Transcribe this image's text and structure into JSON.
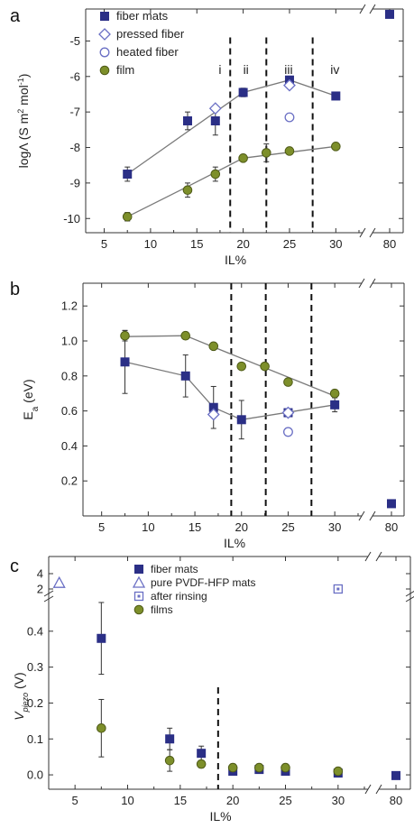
{
  "colors": {
    "navy": "#2b2f86",
    "olive": "#7d8f2a",
    "olive_edge": "#4e5a17",
    "hollow": "#6a6fc4",
    "line": "#7a7a7a"
  },
  "chart_data": [
    {
      "type": "scatter",
      "panel_label": "a",
      "ylabel_parts": [
        "logΛ (S m",
        "2",
        " mol",
        "-1",
        ")"
      ],
      "xlabel": "IL%",
      "ylim": [
        -10.4,
        -4.1
      ],
      "yticks": [
        "-10",
        "-9",
        "-8",
        "-7",
        "-6",
        "-5"
      ],
      "yticks_values": [
        -10,
        -9,
        -8,
        -7,
        -6,
        -5
      ],
      "xticks": [
        "5",
        "10",
        "15",
        "20",
        "25",
        "30",
        "80"
      ],
      "xticks_values": [
        5,
        10,
        15,
        20,
        25,
        30,
        80
      ],
      "dividers_at": [
        18.6,
        22.5,
        27.5
      ],
      "regions": [
        {
          "label": "i",
          "x": 17.5,
          "y": -5.8
        },
        {
          "label": "ii",
          "x": 20.3,
          "y": -5.8
        },
        {
          "label": "iii",
          "x": 24.9,
          "y": -5.8
        },
        {
          "label": "iv",
          "x": 29.9,
          "y": -5.8
        }
      ],
      "legend": [
        "fiber mats",
        "pressed fiber",
        "heated fiber",
        "film"
      ],
      "series": [
        {
          "name": "fiber mats",
          "marker": "square-filled",
          "x": [
            7.5,
            14,
            17,
            20,
            25,
            30,
            80
          ],
          "y": [
            -8.75,
            -7.25,
            -7.25,
            -6.45,
            -6.1,
            -6.55,
            -4.25
          ],
          "err": [
            0.2,
            0.25,
            0.4,
            0.12,
            0.08,
            0.1,
            0
          ]
        },
        {
          "name": "pressed fiber",
          "marker": "diamond-open",
          "x": [
            17,
            25
          ],
          "y": [
            -6.9,
            -6.25
          ],
          "err": [
            0,
            0
          ]
        },
        {
          "name": "heated fiber",
          "marker": "circle-open",
          "x": [
            25
          ],
          "y": [
            -7.15
          ],
          "err": [
            0
          ]
        },
        {
          "name": "film",
          "marker": "circle-filled",
          "x": [
            7.5,
            14,
            17,
            20,
            22.5,
            25,
            30
          ],
          "y": [
            -9.95,
            -9.2,
            -8.75,
            -8.3,
            -8.15,
            -8.1,
            -7.97
          ],
          "err": [
            0.12,
            0.2,
            0.2,
            0.07,
            0.25,
            0.07,
            0.05
          ]
        }
      ],
      "fit_lines": [
        {
          "x": [
            7.5,
            20,
            25,
            30
          ],
          "y": [
            -8.75,
            -6.45,
            -6.1,
            -6.55
          ]
        },
        {
          "x": [
            7.5,
            14,
            20,
            30
          ],
          "y": [
            -9.95,
            -9.1,
            -8.3,
            -7.97
          ]
        }
      ]
    },
    {
      "type": "scatter",
      "panel_label": "b",
      "ylabel_parts": [
        "E",
        "a",
        " (eV)"
      ],
      "xlabel": "IL%",
      "ylim": [
        0,
        1.33
      ],
      "yticks": [
        "0.2",
        "0.4",
        "0.6",
        "0.8",
        "1.0",
        "1.2"
      ],
      "yticks_values": [
        0.2,
        0.4,
        0.6,
        0.8,
        1.0,
        1.2
      ],
      "xticks": [
        "5",
        "10",
        "15",
        "20",
        "25",
        "30",
        "80"
      ],
      "xticks_values": [
        5,
        10,
        15,
        20,
        25,
        30,
        80
      ],
      "dividers_at": [
        18.9,
        22.6,
        27.5
      ],
      "series": [
        {
          "name": "fiber mats",
          "marker": "square-filled",
          "x": [
            7.5,
            14,
            17,
            20,
            25,
            30,
            80
          ],
          "y": [
            0.88,
            0.8,
            0.62,
            0.55,
            0.59,
            0.635,
            0.07
          ],
          "err": [
            0.18,
            0.12,
            0.12,
            0.11,
            0.02,
            0.04,
            0
          ]
        },
        {
          "name": "pressed fiber",
          "marker": "diamond-open",
          "x": [
            17,
            25
          ],
          "y": [
            0.58,
            0.59
          ],
          "err": [
            0,
            0
          ]
        },
        {
          "name": "heated fiber",
          "marker": "circle-open",
          "x": [
            25
          ],
          "y": [
            0.48
          ],
          "err": [
            0
          ]
        },
        {
          "name": "film",
          "marker": "circle-filled",
          "x": [
            7.5,
            14,
            17,
            20,
            22.5,
            25,
            30
          ],
          "y": [
            1.03,
            1.03,
            0.97,
            0.855,
            0.855,
            0.765,
            0.7
          ],
          "err": [
            0.03,
            0,
            0,
            0,
            0,
            0,
            0
          ]
        }
      ],
      "fit_lines": [
        {
          "x": [
            7.5,
            14,
            17,
            20,
            30
          ],
          "y": [
            0.88,
            0.8,
            0.62,
            0.55,
            0.635
          ]
        },
        {
          "x": [
            7.5,
            14,
            30
          ],
          "y": [
            1.025,
            1.03,
            0.685
          ]
        }
      ]
    },
    {
      "type": "scatter",
      "panel_label": "c",
      "ylabel_main": "V",
      "ylabel_sub": "piezo",
      "ylabel_unit": " (V)",
      "xlabel": "IL%",
      "ylim": [
        -0.04,
        0.5
      ],
      "yticks": [
        "0.0",
        "0.1",
        "0.2",
        "0.3",
        "0.4"
      ],
      "yticks_values": [
        0.0,
        0.1,
        0.2,
        0.3,
        0.4
      ],
      "upper_yticks": [
        "2",
        "4"
      ],
      "upper_yticks_values": [
        2,
        4
      ],
      "xticks": [
        "5",
        "10",
        "15",
        "20",
        "25",
        "30",
        "80"
      ],
      "xticks_values": [
        5,
        10,
        15,
        20,
        25,
        30,
        80
      ],
      "dividers_at": [
        18.6
      ],
      "legend": [
        "fiber mats",
        "pure PVDF-HFP mats",
        "after rinsing",
        "films"
      ],
      "series": [
        {
          "name": "fiber mats",
          "marker": "square-filled",
          "x": [
            7.5,
            14,
            17,
            20,
            22.5,
            25,
            30,
            80
          ],
          "y": [
            0.38,
            0.1,
            0.06,
            0.01,
            0.015,
            0.01,
            0.005,
            -0.002
          ],
          "err": [
            0.1,
            0.03,
            0.02,
            0.005,
            0.005,
            0.005,
            0.005,
            0
          ]
        },
        {
          "name": "pure PVDF-HFP mats",
          "marker": "triangle-open",
          "x": [
            3.5
          ],
          "y_upper": [
            2.8
          ]
        },
        {
          "name": "after rinsing",
          "marker": "square-open-dot",
          "x": [
            30
          ],
          "y_upper": [
            2.0
          ]
        },
        {
          "name": "films",
          "marker": "circle-filled",
          "x": [
            7.5,
            14,
            17,
            20,
            22.5,
            25,
            30
          ],
          "y": [
            0.13,
            0.04,
            0.03,
            0.02,
            0.02,
            0.02,
            0.01
          ],
          "err": [
            0.08,
            0.03,
            0.01,
            0.01,
            0.01,
            0.01,
            0.005
          ]
        }
      ]
    }
  ]
}
